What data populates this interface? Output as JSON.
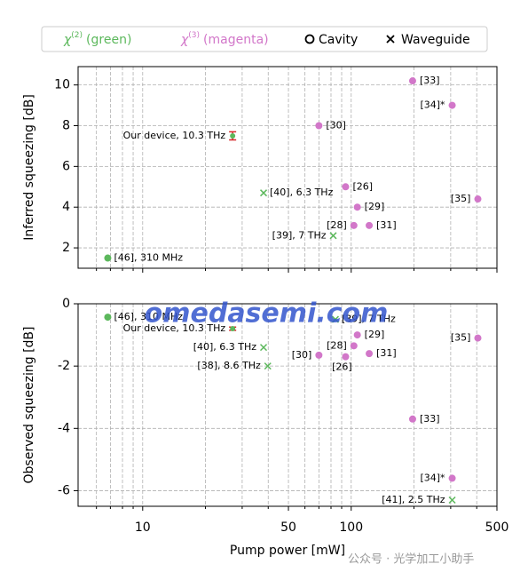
{
  "legend": [
    {
      "symbol": "χ",
      "sup": "(2)",
      "text": "(green)",
      "color": "#5cb85c"
    },
    {
      "symbol": "χ",
      "sup": "(3)",
      "text": "(magenta)",
      "color": "#d277c9"
    },
    {
      "marker": "o",
      "text": "Cavity"
    },
    {
      "marker": "x",
      "text": "Waveguide"
    }
  ],
  "xlabel": "Pump power [mW]",
  "xscale": "log",
  "xlim": [
    4.9,
    500
  ],
  "xticks": [
    10,
    50,
    100,
    500
  ],
  "xminor": [
    6,
    7,
    8,
    9,
    20,
    30,
    40,
    60,
    70,
    80,
    90,
    200,
    300,
    400
  ],
  "grid": true,
  "watermarks": [
    "omedasemi.com",
    "公众号 · 光学加工小助手"
  ],
  "chart_data": [
    {
      "type": "scatter",
      "ylabel": "Inferred squeezing [dB]",
      "ylim": [
        1,
        10.9
      ],
      "yticks": [
        2,
        4,
        6,
        8,
        10
      ],
      "series": [
        {
          "color": "#5cb85c",
          "marker": "o",
          "x": [
            6.8
          ],
          "values": [
            1.5
          ],
          "labels": [
            "[46], 310 MHz"
          ]
        },
        {
          "color": "#5cb85c",
          "marker": "o",
          "ecolor": "#d62728",
          "x": [
            27
          ],
          "values": [
            7.5
          ],
          "errors": [
            0.2
          ],
          "labels": [
            "Our device, 10.3 THz"
          ]
        },
        {
          "color": "#5cb85c",
          "marker": "x",
          "x": [
            38,
            82
          ],
          "values": [
            4.7,
            2.6
          ],
          "labels": [
            "[40], 6.3 THz",
            "[39], 7 THz"
          ]
        },
        {
          "color": "#d277c9",
          "marker": "o",
          "x": [
            197,
            305,
            70,
            94,
            107,
            103,
            122,
            405
          ],
          "values": [
            10.2,
            9.0,
            8.0,
            5.0,
            4.0,
            3.1,
            3.1,
            4.4
          ],
          "labels": [
            "[33]",
            "[34]*",
            "[30]",
            "[26]",
            "[29]",
            "[28]",
            "[31]",
            "[35]"
          ]
        }
      ]
    },
    {
      "type": "scatter",
      "ylabel": "Observed squeezing [dB]",
      "ylim": [
        -6.5,
        0
      ],
      "yticks": [
        -6,
        -4,
        -2,
        0
      ],
      "series": [
        {
          "color": "#5cb85c",
          "marker": "o",
          "x": [
            6.8
          ],
          "values": [
            -0.43
          ],
          "labels": [
            "[46], 310 MHz"
          ]
        },
        {
          "color": "#5cb85c",
          "marker": "o",
          "ecolor": "#d62728",
          "x": [
            27
          ],
          "values": [
            -0.8
          ],
          "errors": [
            0.05
          ],
          "labels": [
            "Our device, 10.3 THz"
          ]
        },
        {
          "color": "#5cb85c",
          "marker": "x",
          "x": [
            38,
            39.8,
            84,
            305
          ],
          "values": [
            -1.4,
            -2.0,
            -0.5,
            -6.3
          ],
          "labels": [
            "[40], 6.3 THz",
            "[38], 8.6 THz",
            "[39], 7 THz",
            "[41], 2.5 THz"
          ]
        },
        {
          "color": "#d277c9",
          "marker": "o",
          "x": [
            70,
            103,
            107,
            94,
            122,
            405,
            197,
            305
          ],
          "values": [
            -1.65,
            -1.35,
            -1.0,
            -1.7,
            -1.6,
            -1.1,
            -3.7,
            -5.6
          ],
          "labels": [
            "[30]",
            "[28]",
            "[29]",
            "[26]",
            "[31]",
            "[35]",
            "[33]",
            "[34]*"
          ]
        }
      ]
    }
  ]
}
